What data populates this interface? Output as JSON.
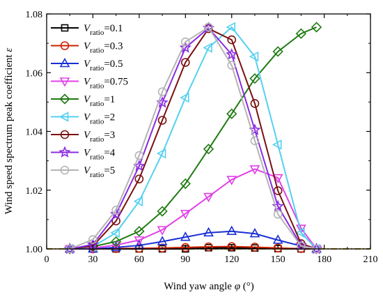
{
  "chart_data": {
    "type": "line",
    "xlabel_text": "Wind yaw angle ",
    "xlabel_symbol": "φ",
    "xlabel_unit": " (°)",
    "ylabel_text": "Wind speed spectrum peak coefficient ",
    "ylabel_symbol": "ε",
    "xlim": [
      0,
      210
    ],
    "ylim": [
      1.0,
      1.08
    ],
    "x_ticks": [
      0,
      30,
      60,
      90,
      120,
      150,
      180,
      210
    ],
    "y_ticks": [
      1.0,
      1.02,
      1.04,
      1.06,
      1.08
    ],
    "y_tick_labels": [
      "1.00",
      "1.02",
      "1.04",
      "1.06",
      "1.08"
    ],
    "legend_position": "top-left",
    "reference_line": {
      "y": 1.0,
      "color": "#c8a82a"
    },
    "x": [
      15,
      30,
      45,
      60,
      75,
      90,
      105,
      120,
      135,
      150,
      165,
      175
    ],
    "series": [
      {
        "name_var": "V",
        "name_sub": "ratio",
        "name_value": "=0.1",
        "marker": "square",
        "color": "#000000",
        "values": [
          1.0,
          1.0,
          1.0,
          1.0,
          1.0,
          1.0,
          1.0004,
          1.0004,
          1.0003,
          1.0001,
          1.0,
          1.0
        ]
      },
      {
        "name_var": "V",
        "name_sub": "ratio",
        "name_value": "=0.3",
        "marker": "circle",
        "color": "#cc2200",
        "values": [
          1.0,
          1.0,
          1.0001,
          1.0002,
          1.0003,
          1.0005,
          1.0007,
          1.0008,
          1.0006,
          1.0003,
          1.0001,
          1.0
        ]
      },
      {
        "name_var": "V",
        "name_sub": "ratio",
        "name_value": "=0.5",
        "marker": "triangle-up",
        "color": "#1a2fd6",
        "values": [
          1.0,
          1.0,
          1.0005,
          1.0012,
          1.0025,
          1.004,
          1.0055,
          1.006,
          1.0052,
          1.003,
          1.001,
          1.0
        ]
      },
      {
        "name_var": "V",
        "name_sub": "ratio",
        "name_value": "=0.75",
        "marker": "triangle-down",
        "color": "#e040e8",
        "values": [
          1.0,
          1.0003,
          1.0013,
          1.003,
          1.0065,
          1.012,
          1.0178,
          1.0236,
          1.0272,
          1.0242,
          1.007,
          1.0
        ]
      },
      {
        "name_var": "V",
        "name_sub": "ratio",
        "name_value": "=1",
        "marker": "diamond",
        "color": "#1f7a12",
        "values": [
          1.0,
          1.0008,
          1.0025,
          1.006,
          1.0128,
          1.0222,
          1.034,
          1.046,
          1.058,
          1.0672,
          1.0733,
          1.0755
        ]
      },
      {
        "name_var": "V",
        "name_sub": "ratio",
        "name_value": "=2",
        "marker": "triangle-left",
        "color": "#55d0f0",
        "values": [
          1.0,
          1.0008,
          1.0055,
          1.0162,
          1.0325,
          1.0515,
          1.0685,
          1.0755,
          1.0655,
          1.0355,
          1.0055,
          1.0
        ]
      },
      {
        "name_var": "V",
        "name_sub": "ratio",
        "name_value": "=3",
        "marker": "circle",
        "color": "#7a1010",
        "values": [
          1.0,
          1.001,
          1.0095,
          1.0238,
          1.0438,
          1.0635,
          1.075,
          1.0712,
          1.0495,
          1.0198,
          1.0018,
          1.0
        ]
      },
      {
        "name_var": "V",
        "name_sub": "ratio",
        "name_value": "=4",
        "marker": "star",
        "color": "#8a2be2",
        "values": [
          1.0,
          1.0015,
          1.0118,
          1.0282,
          1.0498,
          1.0685,
          1.0752,
          1.0662,
          1.0405,
          1.0145,
          1.0012,
          1.0
        ]
      },
      {
        "name_var": "V",
        "name_sub": "ratio",
        "name_value": "=5",
        "marker": "circle",
        "color": "#b4b4b4",
        "values": [
          1.0,
          1.0032,
          1.0132,
          1.0318,
          1.0535,
          1.0705,
          1.0755,
          1.0625,
          1.0368,
          1.0118,
          1.001,
          1.0
        ]
      }
    ]
  }
}
